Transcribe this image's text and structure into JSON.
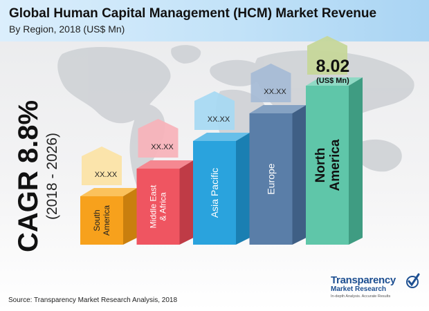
{
  "header": {
    "title": "Global Human Capital Management (HCM) Market Revenue",
    "subtitle": "By Region, 2018 (US$ Mn)"
  },
  "cagr": {
    "label": "CAGR 8.8%",
    "period": "(2018 - 2026)"
  },
  "highlight": {
    "value": "8.02",
    "unit": "(US$ Mn)"
  },
  "source": "Source: Transparency Market Research Analysis, 2018",
  "logo": {
    "name": "Transparency",
    "sub": "Market Research",
    "tag": "In-depth Analysis. Accurate Results"
  },
  "colors": {
    "header": "#c2e2f8",
    "text": "#111111",
    "logo": "#1d4f91"
  },
  "chart_data": {
    "type": "bar",
    "categories": [
      {
        "label": "South America",
        "lines": [
          "South",
          "America"
        ],
        "value_label": "XX.XX"
      },
      {
        "label": "Middle East & Africa",
        "lines": [
          "Middle East",
          "& Africa"
        ],
        "value_label": "XX.XX"
      },
      {
        "label": "Asia Pacific",
        "lines": [
          "Asia Pacific"
        ],
        "value_label": "XX.XX"
      },
      {
        "label": "Europe",
        "lines": [
          "Europe"
        ],
        "value_label": "XX.XX"
      },
      {
        "label": "North America",
        "lines": [
          "North",
          "America"
        ],
        "value_label": "8.02",
        "highlight": true
      }
    ],
    "values": [
      1,
      2,
      3,
      4,
      5
    ],
    "bar_colors": [
      {
        "front": "#f7a11c",
        "side": "#c97f0e",
        "top": "#fbc25c",
        "arrow": "#fbe3a6"
      },
      {
        "front": "#ef5561",
        "side": "#bf3b46",
        "top": "#f58891",
        "arrow": "#f7b3bb"
      },
      {
        "front": "#2aa3dd",
        "side": "#1a7fb2",
        "top": "#67bfe9",
        "arrow": "#a8d9f2"
      },
      {
        "front": "#5a7ea8",
        "side": "#3f5f85",
        "top": "#85a2c3",
        "arrow": "#a6bcd6"
      },
      {
        "front": "#5fc6a9",
        "side": "#3f9c82",
        "top": "#8fd9c4",
        "arrow": "#c6d79a"
      }
    ]
  }
}
